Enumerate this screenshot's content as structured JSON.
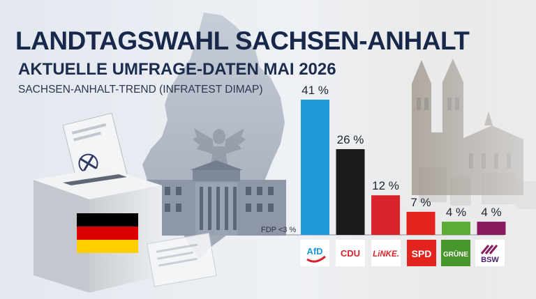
{
  "header": {
    "title": "LANDTAGSWAHL SACHSEN-ANHALT",
    "subtitle": "AKTUELLE UMFRAGE-DATEN MAI 2026",
    "source": "SACHSEN-ANHALT-TREND (INFRATEST DIMAP)"
  },
  "chart_data": {
    "type": "bar",
    "categories": [
      "AfD",
      "CDU",
      "LINKE.",
      "SPD",
      "GRÜNE",
      "BSW"
    ],
    "values": [
      41,
      26,
      12,
      7,
      4,
      4
    ],
    "value_labels": [
      "41 %",
      "26 %",
      "12 %",
      "7 %",
      "4 %",
      "4 %"
    ],
    "colors": [
      "#1e98d9",
      "#1a1a1a",
      "#d8232a",
      "#e3231d",
      "#5bab35",
      "#8a1a5e"
    ],
    "annotation": "FDP <3 %",
    "ylim": [
      0,
      41
    ],
    "grid": false,
    "legend": "none"
  },
  "logos": {
    "afd": "AfD",
    "cdu": "CDU",
    "linke": "LiNKE.",
    "spd": "SPD",
    "gruene": "GRÜNE",
    "bsw": "BSW"
  },
  "colors": {
    "title": "#17284a",
    "background": "#e9edf3",
    "flag": [
      "#000000",
      "#dd0000",
      "#ffce00"
    ]
  },
  "icons": [
    "ballot-box-icon",
    "german-flag-icon",
    "federal-eagle-icon",
    "parliament-building-icon",
    "cathedral-icon",
    "saxony-anhalt-map-icon"
  ]
}
